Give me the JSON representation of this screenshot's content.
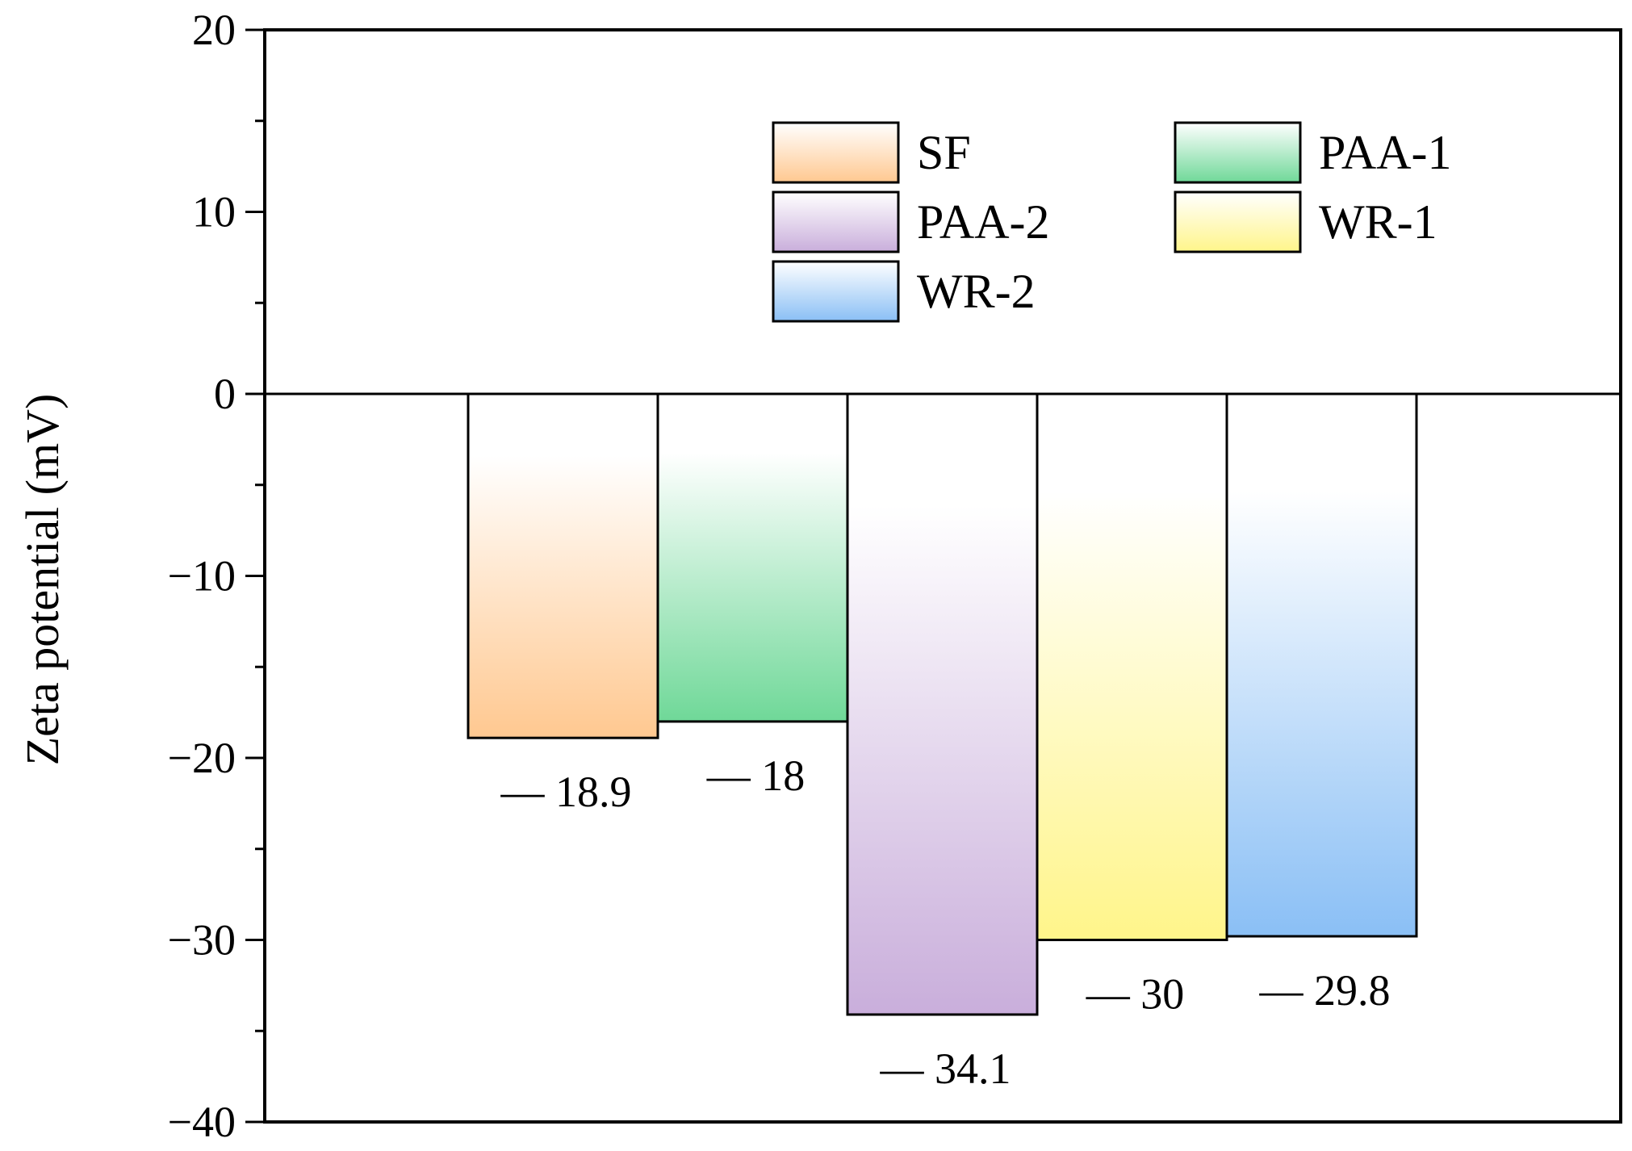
{
  "chart_data": {
    "type": "bar",
    "title": "",
    "xlabel": "",
    "ylabel": "Zeta potential (mV)",
    "ylim": [
      -40,
      20
    ],
    "yticks": [
      20,
      10,
      0,
      -10,
      -20,
      -30,
      -40
    ],
    "ytick_labels": [
      "20",
      "10",
      "0",
      "−10",
      "−20",
      "−30",
      "−40"
    ],
    "grid": false,
    "legend_position": "top-right",
    "series": [
      {
        "name": "SF",
        "value": -18.9,
        "label": "— 18.9",
        "color": "#ffc890"
      },
      {
        "name": "PAA-1",
        "value": -18,
        "label": "— 18",
        "color": "#6fd898"
      },
      {
        "name": "PAA-2",
        "value": -34.1,
        "label": "— 34.1",
        "color": "#c9aedb"
      },
      {
        "name": "WR-1",
        "value": -30,
        "label": "— 30",
        "color": "#fff58a"
      },
      {
        "name": "WR-2",
        "value": -29.8,
        "label": "— 29.8",
        "color": "#8abff5"
      }
    ],
    "legend_order": [
      "SF",
      "PAA-1",
      "PAA-2",
      "WR-1",
      "WR-2"
    ]
  }
}
